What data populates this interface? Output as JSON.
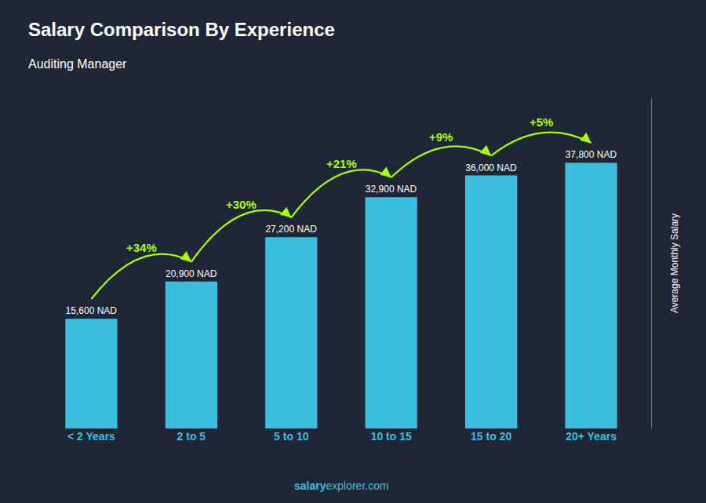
{
  "chart_data": {
    "type": "bar",
    "title": "Salary Comparison By Experience",
    "subtitle": "Auditing Manager",
    "categories": [
      "< 2 Years",
      "2 to 5",
      "5 to 10",
      "10 to 15",
      "15 to 20",
      "20+ Years"
    ],
    "values": [
      15600,
      20900,
      27200,
      32900,
      36000,
      37800
    ],
    "value_labels": [
      "15,600 NAD",
      "20,900 NAD",
      "27,200 NAD",
      "32,900 NAD",
      "36,000 NAD",
      "37,800 NAD"
    ],
    "data_labels": true,
    "color": "#3bbfe0",
    "ylabel": "Average Monthly Salary",
    "ylim": [
      0,
      47000
    ],
    "tick_labels": "x",
    "grid": false,
    "annotations": [
      {
        "text": "+34%",
        "from": "< 2 Years",
        "to": "2 to 5",
        "color": "#aaff00"
      },
      {
        "text": "+30%",
        "from": "2 to 5",
        "to": "5 to 10",
        "color": "#aaff00"
      },
      {
        "text": "+21%",
        "from": "5 to 10",
        "to": "10 to 15",
        "color": "#aaff00"
      },
      {
        "text": "+9%",
        "from": "10 to 15",
        "to": "15 to 20",
        "color": "#aaff00"
      },
      {
        "text": "+5%",
        "from": "15 to 20",
        "to": "20+ Years",
        "color": "#aaff00"
      }
    ],
    "watermark": [
      "salary",
      "explorer.com"
    ]
  }
}
